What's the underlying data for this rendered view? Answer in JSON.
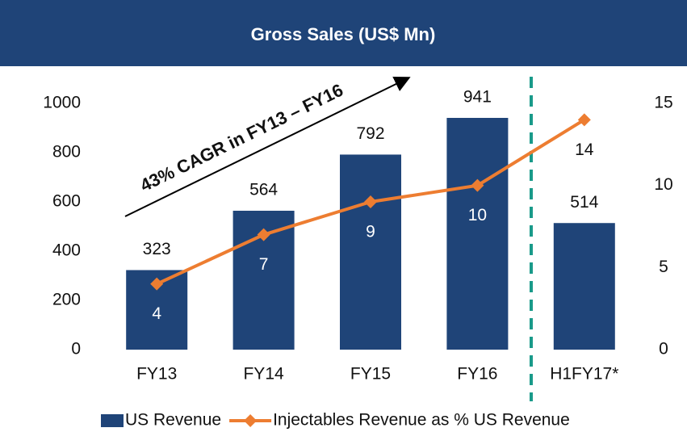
{
  "chart_data": {
    "type": "bar",
    "title": "Gross Sales (US$ Mn)",
    "annotation": "43% CAGR in FY13 – FY16",
    "categories": [
      "FY13",
      "FY14",
      "FY15",
      "FY16",
      "H1FY17*"
    ],
    "series": [
      {
        "name": "US Revenue",
        "type": "bar",
        "color": "#1f4478",
        "values": [
          323,
          564,
          792,
          941,
          514
        ]
      },
      {
        "name": "Injectables Revenue as % US Revenue",
        "type": "line",
        "axis": "y2",
        "color": "#ed7d31",
        "values": [
          4,
          7,
          9,
          10,
          14
        ]
      }
    ],
    "ylim": [
      0,
      1000
    ],
    "yticks": [
      0,
      200,
      400,
      600,
      800,
      1000
    ],
    "y2lim": [
      0,
      15
    ],
    "y2ticks": [
      0,
      5,
      10,
      15
    ],
    "grid": false,
    "legend": "bottom"
  }
}
